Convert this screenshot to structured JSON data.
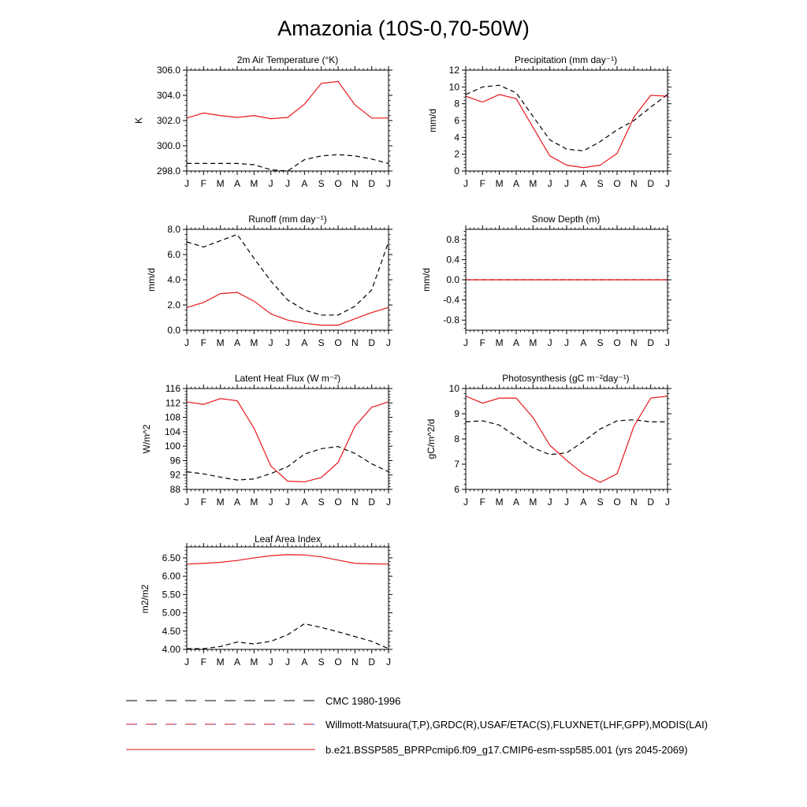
{
  "page_title": "Amazonia (10S-0,70-50W)",
  "colors": {
    "model": "#e8181c",
    "cmc": "#000000",
    "obs_line_a": "#c01030",
    "obs_line_b": "#2030c0"
  },
  "legend": {
    "cmc": "CMC 1980-1996",
    "obs": "Willmott-Matsuura(T,P),GRDC(R),USAF/ETAC(S),FLUXNET(LHF,GPP),MODIS(LAI)",
    "model": "b.e21.BSSP585_BPRPcmip6.f09_g17.CMIP6-esm-ssp585.001 (yrs 2045-2069)"
  },
  "chart_data": [
    {
      "type": "line",
      "title": "2m Air Temperature (°K)",
      "ylabel": "K",
      "x": [
        "J",
        "F",
        "M",
        "A",
        "M",
        "J",
        "J",
        "A",
        "S",
        "O",
        "N",
        "D",
        "J"
      ],
      "ylim": [
        298,
        306
      ],
      "yticks": [
        298,
        300,
        302,
        304,
        306
      ],
      "ytick_labels": [
        "298.0",
        "300.0",
        "302.0",
        "304.0",
        "306.0"
      ],
      "series": [
        {
          "name": "CMC 1980-1996",
          "style": "dashed",
          "values": [
            298.6,
            298.6,
            298.6,
            298.6,
            298.5,
            298.1,
            298.0,
            298.9,
            299.2,
            299.3,
            299.2,
            298.95,
            298.6
          ]
        },
        {
          "name": "b.e21.BSSP585_BPRPcmip6.f09_g17.CMIP6-esm-ssp585.001 (yrs 2045-2069)",
          "style": "solid",
          "values": [
            302.2,
            302.6,
            302.4,
            302.25,
            302.4,
            302.15,
            302.25,
            303.3,
            304.95,
            305.1,
            303.25,
            302.2,
            302.2
          ]
        }
      ]
    },
    {
      "type": "line",
      "title": "Precipitation (mm day⁻¹)",
      "ylabel": "mm/d",
      "x": [
        "J",
        "F",
        "M",
        "A",
        "M",
        "J",
        "J",
        "A",
        "S",
        "O",
        "N",
        "D",
        "J"
      ],
      "ylim": [
        0,
        12
      ],
      "yticks": [
        0,
        2,
        4,
        6,
        8,
        10,
        12
      ],
      "ytick_labels": [
        "0",
        "2",
        "4",
        "6",
        "8",
        "10",
        "12"
      ],
      "series": [
        {
          "name": "CMC 1980-1996",
          "style": "dashed",
          "values": [
            9.1,
            10.0,
            10.2,
            9.3,
            6.5,
            3.7,
            2.6,
            2.4,
            3.5,
            4.9,
            6.0,
            7.6,
            9.1
          ]
        },
        {
          "name": "b.e21.BSSP585_BPRPcmip6.f09_g17.CMIP6-esm-ssp585.001 (yrs 2045-2069)",
          "style": "solid",
          "values": [
            8.9,
            8.2,
            9.1,
            8.6,
            5.2,
            1.8,
            0.7,
            0.4,
            0.7,
            2.1,
            6.4,
            9.0,
            8.9
          ]
        }
      ]
    },
    {
      "type": "line",
      "title": "Runoff (mm day⁻¹)",
      "ylabel": "mm/d",
      "x": [
        "J",
        "F",
        "M",
        "A",
        "M",
        "J",
        "J",
        "A",
        "S",
        "O",
        "N",
        "D",
        "J"
      ],
      "ylim": [
        0,
        8
      ],
      "yticks": [
        0,
        2,
        4,
        6,
        8
      ],
      "ytick_labels": [
        "0.0",
        "2.0",
        "4.0",
        "6.0",
        "8.0"
      ],
      "series": [
        {
          "name": "CMC 1980-1996",
          "style": "dashed",
          "values": [
            7.0,
            6.6,
            7.1,
            7.6,
            5.7,
            3.9,
            2.4,
            1.6,
            1.2,
            1.2,
            1.9,
            3.2,
            7.0
          ]
        },
        {
          "name": "b.e21.BSSP585_BPRPcmip6.f09_g17.CMIP6-esm-ssp585.001 (yrs 2045-2069)",
          "style": "solid",
          "values": [
            1.8,
            2.2,
            2.9,
            3.0,
            2.3,
            1.3,
            0.8,
            0.55,
            0.4,
            0.4,
            0.9,
            1.4,
            1.8
          ]
        }
      ]
    },
    {
      "type": "line",
      "title": "Snow Depth (m)",
      "ylabel": "mm/d",
      "x": [
        "J",
        "F",
        "M",
        "A",
        "M",
        "J",
        "J",
        "A",
        "S",
        "O",
        "N",
        "D",
        "J"
      ],
      "ylim": [
        -1,
        1
      ],
      "yticks": [
        -0.8,
        -0.4,
        0,
        0.4,
        0.8
      ],
      "ytick_labels": [
        "-0.8",
        "-0.4",
        "0.0",
        "0.4",
        "0.8"
      ],
      "series": [
        {
          "name": "CMC 1980-1996",
          "style": "dashed",
          "values": [
            0,
            0,
            0,
            0,
            0,
            0,
            0,
            0,
            0,
            0,
            0,
            0,
            0
          ]
        },
        {
          "name": "b.e21.BSSP585_BPRPcmip6.f09_g17.CMIP6-esm-ssp585.001 (yrs 2045-2069)",
          "style": "solid",
          "values": [
            0,
            0,
            0,
            0,
            0,
            0,
            0,
            0,
            0,
            0,
            0,
            0,
            0
          ]
        }
      ]
    },
    {
      "type": "line",
      "title": "Latent Heat Flux (W m⁻²)",
      "ylabel": "W/m^2",
      "x": [
        "J",
        "F",
        "M",
        "A",
        "M",
        "J",
        "J",
        "A",
        "S",
        "O",
        "N",
        "D",
        "J"
      ],
      "ylim": [
        88,
        116
      ],
      "yticks": [
        88,
        92,
        96,
        100,
        104,
        108,
        112,
        116
      ],
      "ytick_labels": [
        "88",
        "92",
        "96",
        "100",
        "104",
        "108",
        "112",
        "116"
      ],
      "series": [
        {
          "name": "CMC 1980-1996",
          "style": "dashed",
          "values": [
            92.9,
            92.3,
            91.4,
            90.6,
            90.9,
            92.4,
            94.3,
            97.8,
            99.3,
            99.9,
            98.0,
            95.1,
            92.9
          ]
        },
        {
          "name": "b.e21.BSSP585_BPRPcmip6.f09_g17.CMIP6-esm-ssp585.001 (yrs 2045-2069)",
          "style": "solid",
          "values": [
            112.3,
            111.6,
            113.2,
            112.6,
            105.0,
            94.5,
            90.3,
            90.1,
            91.3,
            95.5,
            105.5,
            110.8,
            112.3
          ]
        }
      ]
    },
    {
      "type": "line",
      "title": "Photosynthesis (gC m⁻²day⁻¹)",
      "ylabel": "gC/m^2/d",
      "x": [
        "J",
        "F",
        "M",
        "A",
        "M",
        "J",
        "J",
        "A",
        "S",
        "O",
        "N",
        "D",
        "J"
      ],
      "ylim": [
        6,
        10
      ],
      "yticks": [
        6,
        7,
        8,
        9,
        10
      ],
      "ytick_labels": [
        "6",
        "7",
        "8",
        "9",
        "10"
      ],
      "series": [
        {
          "name": "CMC 1980-1996",
          "style": "dashed",
          "values": [
            8.68,
            8.72,
            8.55,
            8.1,
            7.65,
            7.38,
            7.45,
            7.9,
            8.4,
            8.72,
            8.76,
            8.68,
            8.68
          ]
        },
        {
          "name": "b.e21.BSSP585_BPRPcmip6.f09_g17.CMIP6-esm-ssp585.001 (yrs 2045-2069)",
          "style": "solid",
          "values": [
            9.7,
            9.42,
            9.62,
            9.62,
            8.85,
            7.75,
            7.15,
            6.62,
            6.28,
            6.62,
            8.5,
            9.62,
            9.7
          ]
        }
      ]
    },
    {
      "type": "line",
      "title": "Leaf Area Index",
      "ylabel": "m2/m2",
      "x": [
        "J",
        "F",
        "M",
        "A",
        "M",
        "J",
        "J",
        "A",
        "S",
        "O",
        "N",
        "D",
        "J"
      ],
      "ylim": [
        4,
        6.8
      ],
      "yticks": [
        4.0,
        4.5,
        5.0,
        5.5,
        6.0,
        6.5
      ],
      "ytick_labels": [
        "4.00",
        "4.50",
        "5.00",
        "5.50",
        "6.00",
        "6.50"
      ],
      "series": [
        {
          "name": "CMC 1980-1996",
          "style": "dashed",
          "values": [
            4.02,
            4.02,
            4.08,
            4.2,
            4.15,
            4.22,
            4.4,
            4.7,
            4.6,
            4.48,
            4.35,
            4.22,
            4.02
          ]
        },
        {
          "name": "b.e21.BSSP585_BPRPcmip6.f09_g17.CMIP6-esm-ssp585.001 (yrs 2045-2069)",
          "style": "solid",
          "values": [
            6.33,
            6.35,
            6.38,
            6.43,
            6.5,
            6.56,
            6.59,
            6.58,
            6.53,
            6.44,
            6.35,
            6.34,
            6.33
          ]
        }
      ]
    }
  ]
}
